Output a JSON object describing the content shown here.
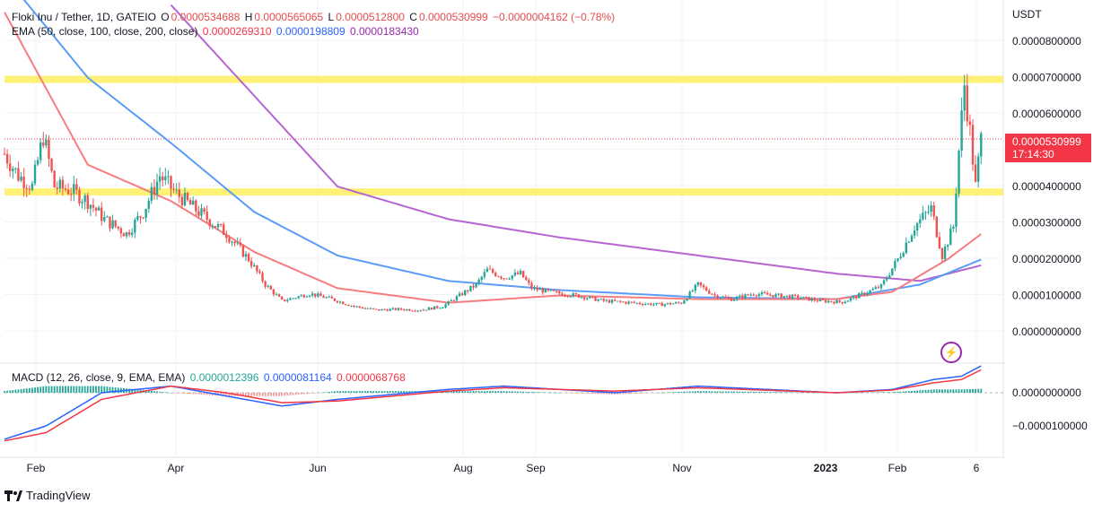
{
  "header": {
    "symbol": "Floki Inu / Tether, 1D, GATEIO",
    "open_label": "O",
    "open": "0.0000534688",
    "high_label": "H",
    "high": "0.0000565065",
    "low_label": "L",
    "low": "0.0000512800",
    "close_label": "C",
    "close": "0.0000530999",
    "change": "−0.0000004162 (−0.78%)",
    "ema_label": "EMA (50, close, 100, close, 200, close)",
    "ema50": "0.0000269310",
    "ema100": "0.0000198809",
    "ema200": "0.0000183430",
    "macd_label": "MACD (12, 26, close, 9, EMA, EMA)",
    "macd_hist": "0.0000012396",
    "macd_line": "0.0000081164",
    "macd_signal": "0.0000068768"
  },
  "price_tag": {
    "price": "0.0000530999",
    "countdown": "17:14:30"
  },
  "footer": {
    "brand": "TradingView"
  },
  "colors": {
    "up": "#26a69a",
    "down": "#ef5350",
    "ema50": "#f77c80",
    "ema100": "#5b9cf6",
    "ema200": "#b665d1",
    "band": "#fff176",
    "macd": "#2962ff",
    "signal": "#f23645",
    "tag": "#f23645"
  },
  "chart_data": {
    "type": "candlestick",
    "currency_label": "USDT",
    "price_axis_ticks": [
      "0.0000800000",
      "0.0000700000",
      "0.0000600000",
      "0.0000400000",
      "0.0000300000",
      "0.0000200000",
      "0.0000100000",
      "0.0000000000"
    ],
    "macd_axis_ticks": [
      "0.0000000000",
      "−0.0000100000"
    ],
    "x_ticks": [
      "Feb",
      "Apr",
      "Jun",
      "Aug",
      "Sep",
      "Nov",
      "2023",
      "Feb",
      "6"
    ],
    "horizontal_levels": [
      6.95e-05,
      3.85e-05
    ],
    "close_path": [
      [
        0,
        4.9e-05
      ],
      [
        5,
        4.3e-05
      ],
      [
        10,
        4e-05
      ],
      [
        14,
        5.4e-05
      ],
      [
        18,
        4e-05
      ],
      [
        24,
        3.9e-05
      ],
      [
        30,
        3.6e-05
      ],
      [
        36,
        3.1e-05
      ],
      [
        44,
        2.7e-05
      ],
      [
        50,
        3.3e-05
      ],
      [
        56,
        4.3e-05
      ],
      [
        62,
        3.8e-05
      ],
      [
        70,
        3.3e-05
      ],
      [
        80,
        2.7e-05
      ],
      [
        88,
        2e-05
      ],
      [
        94,
        1.3e-05
      ],
      [
        100,
        8.5e-06
      ],
      [
        110,
        1.05e-05
      ],
      [
        118,
        9e-06
      ],
      [
        126,
        7e-06
      ],
      [
        134,
        6e-06
      ],
      [
        142,
        6.2e-06
      ],
      [
        150,
        6e-06
      ],
      [
        158,
        7e-06
      ],
      [
        164,
        1e-05
      ],
      [
        170,
        1.3e-05
      ],
      [
        174,
        1.7e-05
      ],
      [
        180,
        1.5e-05
      ],
      [
        186,
        1.6e-05
      ],
      [
        190,
        1.2e-05
      ],
      [
        196,
        1.1e-05
      ],
      [
        206,
        1e-05
      ],
      [
        216,
        8.5e-06
      ],
      [
        226,
        8e-06
      ],
      [
        236,
        7.5e-06
      ],
      [
        244,
        8e-06
      ],
      [
        250,
        1.3e-05
      ],
      [
        256,
        1e-05
      ],
      [
        262,
        9e-06
      ],
      [
        270,
        1.05e-05
      ],
      [
        278,
        1e-05
      ],
      [
        286,
        9.5e-06
      ],
      [
        294,
        8.5e-06
      ],
      [
        302,
        8.2e-06
      ],
      [
        308,
        1e-05
      ],
      [
        316,
        1.25e-05
      ],
      [
        322,
        2e-05
      ],
      [
        328,
        2.9e-05
      ],
      [
        334,
        3.4e-05
      ],
      [
        338,
        2.1e-05
      ],
      [
        342,
        2.9e-05
      ],
      [
        344,
        5e-05
      ],
      [
        346,
        6.8e-05
      ],
      [
        348,
        5.5e-05
      ],
      [
        350,
        4e-05
      ],
      [
        352,
        5.30999e-05
      ]
    ],
    "ema50_path": [
      [
        0,
        8.8e-05
      ],
      [
        30,
        4.6e-05
      ],
      [
        60,
        3.6e-05
      ],
      [
        90,
        2.2e-05
      ],
      [
        120,
        1.2e-05
      ],
      [
        160,
        8e-06
      ],
      [
        200,
        1e-05
      ],
      [
        250,
        9e-06
      ],
      [
        300,
        9e-06
      ],
      [
        320,
        1.1e-05
      ],
      [
        340,
        2e-05
      ],
      [
        352,
        2.69e-05
      ]
    ],
    "ema100_path": [
      [
        0,
        9.8e-05
      ],
      [
        30,
        7e-05
      ],
      [
        60,
        5.2e-05
      ],
      [
        90,
        3.3e-05
      ],
      [
        120,
        2.1e-05
      ],
      [
        160,
        1.4e-05
      ],
      [
        200,
        1.15e-05
      ],
      [
        250,
        9.5e-06
      ],
      [
        300,
        9e-06
      ],
      [
        330,
        1.3e-05
      ],
      [
        352,
        1.99e-05
      ]
    ],
    "ema200_path": [
      [
        60,
        9e-05
      ],
      [
        90,
        6.5e-05
      ],
      [
        120,
        4e-05
      ],
      [
        160,
        3.1e-05
      ],
      [
        200,
        2.6e-05
      ],
      [
        250,
        2.1e-05
      ],
      [
        300,
        1.6e-05
      ],
      [
        330,
        1.4e-05
      ],
      [
        352,
        1.83e-05
      ]
    ],
    "macd_path": [
      [
        0,
        -1.4e-05
      ],
      [
        15,
        -1e-05
      ],
      [
        35,
        0.0
      ],
      [
        60,
        2e-06
      ],
      [
        80,
        -1e-06
      ],
      [
        100,
        -4e-06
      ],
      [
        120,
        -2e-06
      ],
      [
        160,
        1e-06
      ],
      [
        180,
        2e-06
      ],
      [
        220,
        0.0
      ],
      [
        250,
        2e-06
      ],
      [
        300,
        0.0
      ],
      [
        320,
        1e-06
      ],
      [
        335,
        4e-06
      ],
      [
        345,
        5e-06
      ],
      [
        352,
        8.1e-06
      ]
    ],
    "signal_path": [
      [
        0,
        -1.45e-05
      ],
      [
        15,
        -1.2e-05
      ],
      [
        35,
        -2e-06
      ],
      [
        60,
        2e-06
      ],
      [
        80,
        0.0
      ],
      [
        100,
        -3e-06
      ],
      [
        120,
        -2.5e-06
      ],
      [
        160,
        5e-07
      ],
      [
        180,
        1.5e-06
      ],
      [
        220,
        5e-07
      ],
      [
        250,
        1.5e-06
      ],
      [
        300,
        0.0
      ],
      [
        320,
        8e-07
      ],
      [
        335,
        3e-06
      ],
      [
        345,
        4e-06
      ],
      [
        352,
        6.9e-06
      ]
    ]
  }
}
